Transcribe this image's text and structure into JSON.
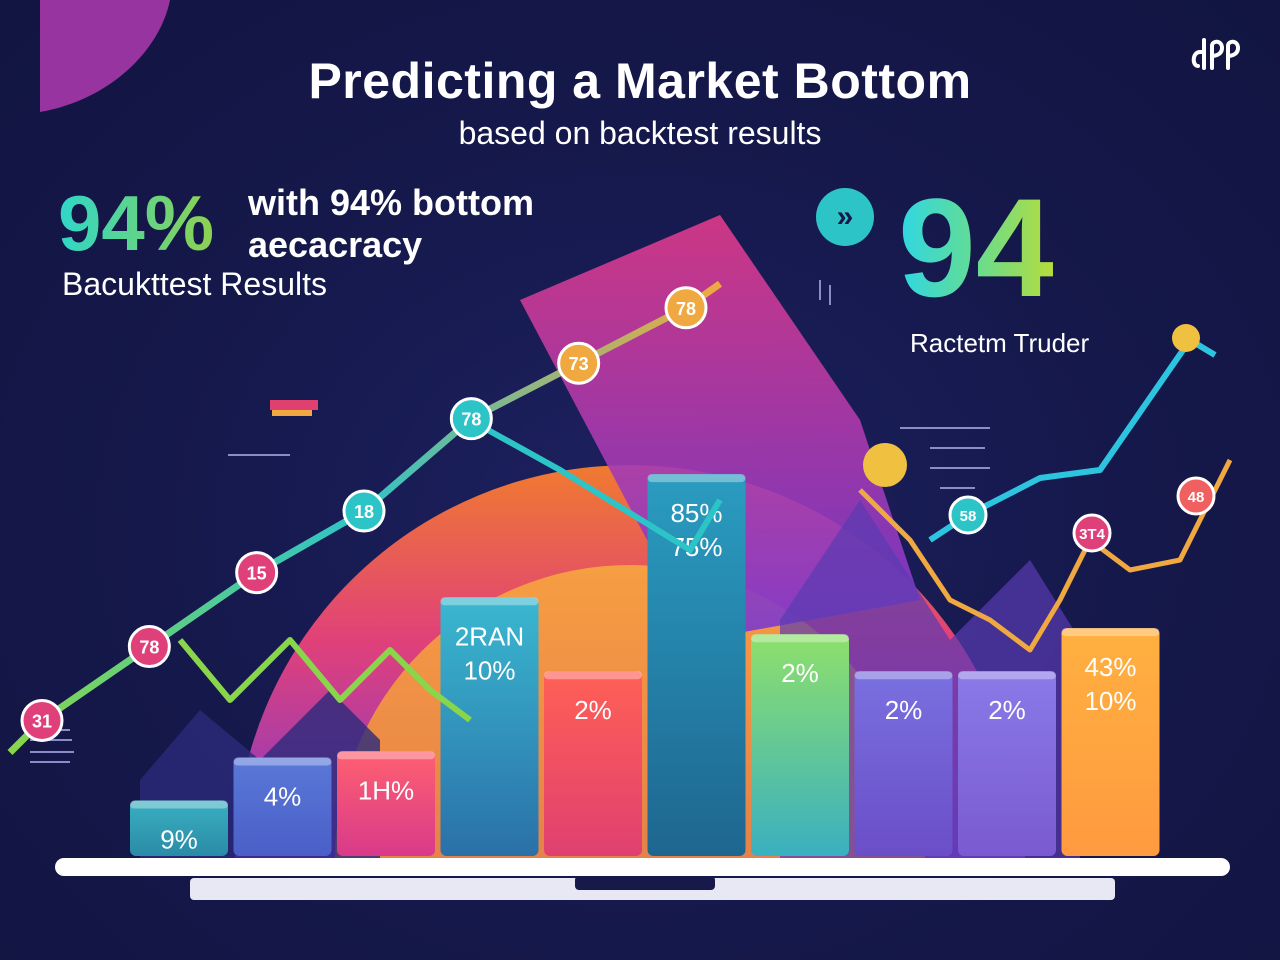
{
  "header": {
    "title": "Predicting a Market Bottom",
    "subtitle": "based on backtest results"
  },
  "left_panel": {
    "big_stat": "94%",
    "accuracy_line1": "with 94% bottom",
    "accuracy_line2": "aecacracy",
    "results_label": "Bacukttest Results"
  },
  "right_panel": {
    "big_number": "94",
    "trader_label": "Ractetm Truder",
    "icon": "chevrons-icon"
  },
  "logo": {
    "icon": "brand-logo-icon"
  },
  "colors": {
    "background": "#16194a",
    "accent_teal": "#2dc4c8",
    "accent_green": "#8fd14f",
    "accent_pink": "#e0407a",
    "accent_orange": "#f0a040",
    "accent_purple": "#7a5ad0"
  },
  "chart_data": {
    "type": "bar",
    "bars": [
      {
        "labels": [
          "9%"
        ],
        "value": 9,
        "color_top": "#3ab0c0",
        "color_bottom": "#2a8ba8"
      },
      {
        "labels": [
          "4%"
        ],
        "value": 16,
        "color_top": "#5a78d8",
        "color_bottom": "#4a5fc8"
      },
      {
        "labels": [
          "1H%"
        ],
        "value": 17,
        "color_top": "#ff6070",
        "color_bottom": "#d83a8a"
      },
      {
        "labels": [
          "2RAN",
          "10%"
        ],
        "value": 42,
        "color_top": "#3ab8d0",
        "color_bottom": "#2a70a8"
      },
      {
        "labels": [
          "2%"
        ],
        "value": 30,
        "color_top": "#ff6055",
        "color_bottom": "#e04070"
      },
      {
        "labels": [
          "85%",
          "75%"
        ],
        "value": 62,
        "color_top": "#2a9cc0",
        "color_bottom": "#1e6690"
      },
      {
        "labels": [
          "2%"
        ],
        "value": 36,
        "color_top": "#8ee06a",
        "color_bottom": "#3ab0c0"
      },
      {
        "labels": [
          "2%"
        ],
        "value": 30,
        "color_top": "#7a70e0",
        "color_bottom": "#6a4ec8"
      },
      {
        "labels": [
          "2%"
        ],
        "value": 30,
        "color_top": "#8a7ae8",
        "color_bottom": "#7a5ad0"
      },
      {
        "labels": [
          "43%",
          "10%"
        ],
        "value": 37,
        "color_top": "#ffb040",
        "color_bottom": "#ff9a40"
      }
    ],
    "line_points": [
      {
        "label": "31",
        "value": 22,
        "color": "#e0407a"
      },
      {
        "label": "78",
        "value": 34,
        "color": "#e0407a"
      },
      {
        "label": "15",
        "value": 46,
        "color": "#e0407a"
      },
      {
        "label": "18",
        "value": 56,
        "color": "#2dc4c8"
      },
      {
        "label": "78",
        "value": 71,
        "color": "#2dc4c8"
      },
      {
        "label": "73",
        "value": 80,
        "color": "#f0a840"
      },
      {
        "label": "78",
        "value": 89,
        "color": "#f0a840"
      }
    ],
    "right_points": [
      {
        "label": "58",
        "color": "#2dc4c8"
      },
      {
        "label": "3T4",
        "color": "#e0407a"
      },
      {
        "label": "48",
        "color": "#f06060"
      }
    ],
    "ylim": [
      0,
      100
    ]
  }
}
